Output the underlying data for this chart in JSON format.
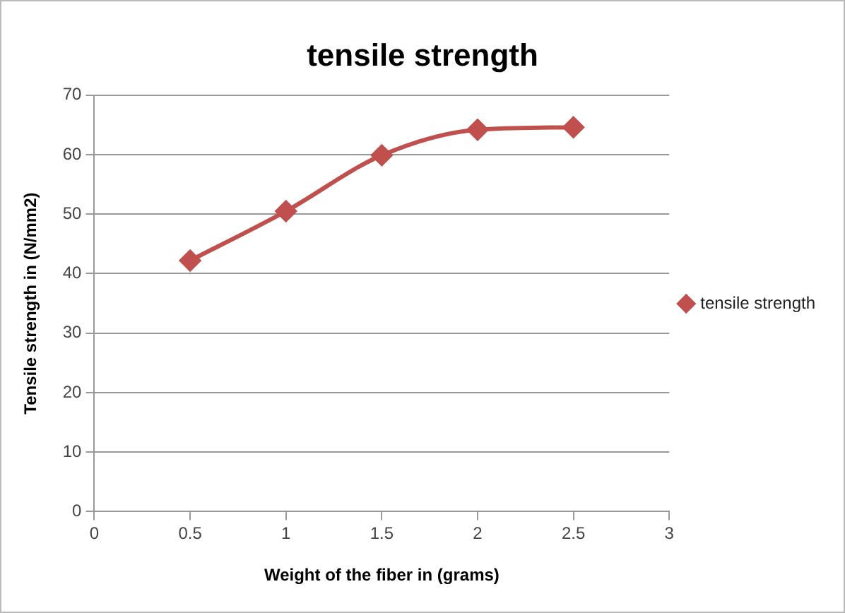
{
  "chart_data": {
    "type": "line",
    "title": "tensile strength",
    "xlabel": "Weight of the fiber in (grams)",
    "ylabel": "Tensile strength in (N/mm2)",
    "x": [
      0.5,
      1,
      1.5,
      2,
      2.5
    ],
    "series": [
      {
        "name": "tensile strength",
        "color": "#c0504d",
        "values": [
          42.2,
          50.5,
          59.9,
          64.2,
          64.6
        ]
      }
    ],
    "xlim": [
      0,
      3
    ],
    "xticks": [
      0,
      0.5,
      1,
      1.5,
      2,
      2.5,
      3
    ],
    "ylim": [
      0,
      70
    ],
    "yticks": [
      0,
      10,
      20,
      30,
      40,
      50,
      60,
      70
    ],
    "grid": "y",
    "legend": "right",
    "marker": "diamond",
    "line_style": "solid"
  }
}
